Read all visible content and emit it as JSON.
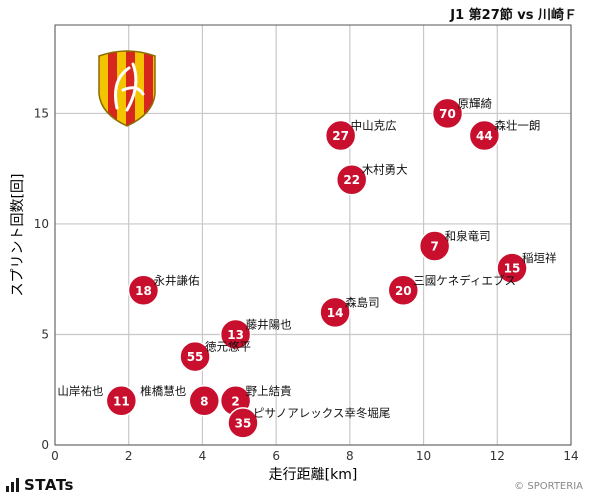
{
  "header": {
    "title": "J1 第27節 vs 川崎Ｆ"
  },
  "footer": {
    "brand": "STATs",
    "credit": "© SPORTERIA"
  },
  "colors": {
    "marker": "#c8102e",
    "marker_edge": "#ffffff",
    "grid": "#c8c8c8",
    "emblem_red": "#d7261e",
    "emblem_yellow": "#f5c400"
  },
  "chart_data": {
    "type": "scatter",
    "title": "",
    "xlabel": "走行距離[km]",
    "ylabel": "スプリント回数[回]",
    "xlim": [
      0,
      14
    ],
    "ylim": [
      0,
      19
    ],
    "xticks": [
      0,
      2,
      4,
      6,
      8,
      10,
      12,
      14
    ],
    "yticks": [
      0,
      5,
      10,
      15
    ],
    "grid": true,
    "emblem": "club-emblem-icon",
    "points": [
      {
        "number": "70",
        "name": "原輝綺",
        "x": 10.65,
        "y": 15
      },
      {
        "number": "44",
        "name": "森壮一朗",
        "x": 11.65,
        "y": 14
      },
      {
        "number": "27",
        "name": "中山克広",
        "x": 7.75,
        "y": 14
      },
      {
        "number": "22",
        "name": "木村勇大",
        "x": 8.05,
        "y": 12
      },
      {
        "number": "7",
        "name": "和泉竜司",
        "x": 10.3,
        "y": 9
      },
      {
        "number": "15",
        "name": "稲垣祥",
        "x": 12.4,
        "y": 8
      },
      {
        "number": "20",
        "name": "三國ケネディエブス",
        "x": 9.45,
        "y": 7
      },
      {
        "number": "18",
        "name": "永井謙佑",
        "x": 2.4,
        "y": 7
      },
      {
        "number": "14",
        "name": "森島司",
        "x": 7.6,
        "y": 6
      },
      {
        "number": "13",
        "name": "藤井陽也",
        "x": 4.9,
        "y": 5
      },
      {
        "number": "55",
        "name": "徳元悠平",
        "x": 3.8,
        "y": 4
      },
      {
        "number": "11",
        "name": "山岸祐也",
        "x": 1.8,
        "y": 2
      },
      {
        "number": "8",
        "name": "椎橋慧也",
        "x": 4.05,
        "y": 2
      },
      {
        "number": "2",
        "name": "野上結貴",
        "x": 4.9,
        "y": 2
      },
      {
        "number": "35",
        "name": "ピサノアレックス幸冬堀尾",
        "x": 5.1,
        "y": 1
      }
    ]
  }
}
